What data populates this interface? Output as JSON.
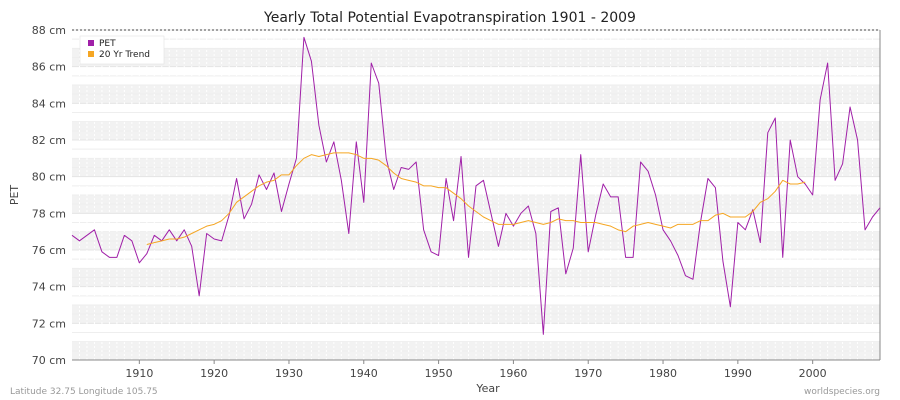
{
  "chart_data": {
    "type": "line",
    "title": "Yearly Total Potential Evapotranspiration 1901 - 2009",
    "xlabel": "Year",
    "ylabel": "PET",
    "xlim": [
      1901,
      2009
    ],
    "ylim": [
      70,
      88
    ],
    "x_ticks": [
      1910,
      1920,
      1930,
      1940,
      1950,
      1960,
      1970,
      1980,
      1990,
      2000
    ],
    "y_ticks": [
      70,
      72,
      74,
      76,
      78,
      80,
      82,
      84,
      86,
      88
    ],
    "y_unit": "cm",
    "grid": true,
    "legend_position": "top-left",
    "footer_left": "Latitude 32.75 Longitude 105.75",
    "footer_right": "worldspecies.org",
    "series": [
      {
        "name": "PET",
        "color": "#a020a8",
        "x": [
          1901,
          1902,
          1903,
          1904,
          1905,
          1906,
          1907,
          1908,
          1909,
          1910,
          1911,
          1912,
          1913,
          1914,
          1915,
          1916,
          1917,
          1918,
          1919,
          1920,
          1921,
          1922,
          1923,
          1924,
          1925,
          1926,
          1927,
          1928,
          1929,
          1930,
          1931,
          1932,
          1933,
          1934,
          1935,
          1936,
          1937,
          1938,
          1939,
          1940,
          1941,
          1942,
          1943,
          1944,
          1945,
          1946,
          1947,
          1948,
          1949,
          1950,
          1951,
          1952,
          1953,
          1954,
          1955,
          1956,
          1957,
          1958,
          1959,
          1960,
          1961,
          1962,
          1963,
          1964,
          1965,
          1966,
          1967,
          1968,
          1969,
          1970,
          1971,
          1972,
          1973,
          1974,
          1975,
          1976,
          1977,
          1978,
          1979,
          1980,
          1981,
          1982,
          1983,
          1984,
          1985,
          1986,
          1987,
          1988,
          1989,
          1990,
          1991,
          1992,
          1993,
          1994,
          1995,
          1996,
          1997,
          1998,
          1999,
          2000,
          2001,
          2002,
          2003,
          2004,
          2005,
          2006,
          2007,
          2008,
          2009
        ],
        "values": [
          76.8,
          76.5,
          76.8,
          77.1,
          75.9,
          75.6,
          75.6,
          76.8,
          76.5,
          75.3,
          75.8,
          76.8,
          76.5,
          77.1,
          76.5,
          77.1,
          76.2,
          73.5,
          76.9,
          76.6,
          76.5,
          77.9,
          79.9,
          77.7,
          78.5,
          80.1,
          79.3,
          80.2,
          78.1,
          79.6,
          81.0,
          87.6,
          86.3,
          82.8,
          80.8,
          81.9,
          79.8,
          76.9,
          81.9,
          78.6,
          86.2,
          85.1,
          81.0,
          79.3,
          80.5,
          80.4,
          80.8,
          77.1,
          75.9,
          75.7,
          79.9,
          77.6,
          81.1,
          75.6,
          79.5,
          79.8,
          78.0,
          76.2,
          78.0,
          77.3,
          78.0,
          78.4,
          76.9,
          71.4,
          78.1,
          78.3,
          74.7,
          76.1,
          81.2,
          75.9,
          77.9,
          79.6,
          78.9,
          78.9,
          75.6,
          75.6,
          80.8,
          80.3,
          79.0,
          77.1,
          76.5,
          75.7,
          74.6,
          74.4,
          77.5,
          79.9,
          79.4,
          75.4,
          72.9,
          77.5,
          77.1,
          78.2,
          76.4,
          82.4,
          83.2,
          75.6,
          82.0,
          80.0,
          79.6,
          79.0,
          84.2,
          86.2,
          79.8,
          80.7,
          83.8,
          82.0,
          77.1,
          77.8,
          78.3
        ]
      },
      {
        "name": "20 Yr Trend",
        "color": "#f5a623",
        "x": [
          1911,
          1912,
          1913,
          1914,
          1915,
          1916,
          1917,
          1918,
          1919,
          1920,
          1921,
          1922,
          1923,
          1924,
          1925,
          1926,
          1927,
          1928,
          1929,
          1930,
          1931,
          1932,
          1933,
          1934,
          1935,
          1936,
          1937,
          1938,
          1939,
          1940,
          1941,
          1942,
          1943,
          1944,
          1945,
          1946,
          1947,
          1948,
          1949,
          1950,
          1951,
          1952,
          1953,
          1954,
          1955,
          1956,
          1957,
          1958,
          1959,
          1960,
          1961,
          1962,
          1963,
          1964,
          1965,
          1966,
          1967,
          1968,
          1969,
          1970,
          1971,
          1972,
          1973,
          1974,
          1975,
          1976,
          1977,
          1978,
          1979,
          1980,
          1981,
          1982,
          1983,
          1984,
          1985,
          1986,
          1987,
          1988,
          1989,
          1990,
          1991,
          1992,
          1993,
          1994,
          1995,
          1996,
          1997,
          1998,
          1999
        ],
        "values": [
          76.3,
          76.4,
          76.5,
          76.6,
          76.6,
          76.7,
          76.9,
          77.1,
          77.3,
          77.4,
          77.6,
          78.0,
          78.6,
          78.9,
          79.2,
          79.5,
          79.7,
          79.8,
          80.1,
          80.1,
          80.6,
          81.0,
          81.2,
          81.1,
          81.2,
          81.3,
          81.3,
          81.3,
          81.2,
          81.0,
          81.0,
          80.9,
          80.6,
          80.2,
          79.9,
          79.8,
          79.7,
          79.5,
          79.5,
          79.4,
          79.4,
          79.1,
          78.8,
          78.4,
          78.1,
          77.8,
          77.6,
          77.4,
          77.4,
          77.4,
          77.5,
          77.6,
          77.5,
          77.4,
          77.5,
          77.7,
          77.6,
          77.6,
          77.5,
          77.5,
          77.5,
          77.4,
          77.3,
          77.1,
          77.0,
          77.3,
          77.4,
          77.5,
          77.4,
          77.3,
          77.2,
          77.4,
          77.4,
          77.4,
          77.6,
          77.6,
          77.9,
          78.0,
          77.8,
          77.8,
          77.8,
          78.1,
          78.6,
          78.8,
          79.2,
          79.8,
          79.6,
          79.6,
          79.7
        ]
      }
    ]
  }
}
